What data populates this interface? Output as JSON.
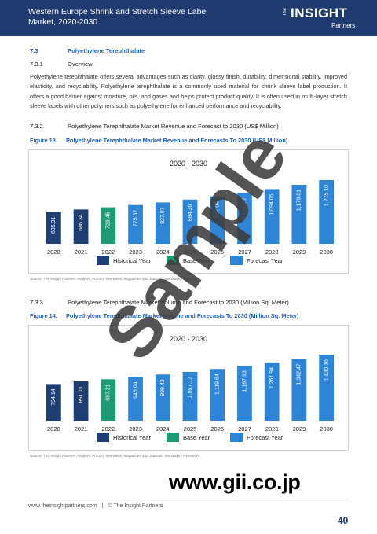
{
  "header": {
    "title": "Western Europe Shrink and Stretch Sleeve Label Market, 2020-2030",
    "logo": {
      "the": "The",
      "insight": "INSIGHT",
      "partners": "Partners"
    }
  },
  "sections": {
    "s1": {
      "num": "7.3",
      "title": "Polyethylene Terephthalate"
    },
    "s2": {
      "num": "7.3.1",
      "title": "Overview"
    },
    "s3": {
      "num": "7.3.2",
      "title": "Polyethylene Terephthalate Market Revenue and Forecast to 2030 (US$ Million)"
    },
    "s4": {
      "num": "7.3.3",
      "title": "Polyethylene Terephthalate Market Volume and Forecast to 2030 (Million Sq. Meter)"
    }
  },
  "overview_text": "Polyethylene terephthalate offers several advantages such as clarity, glossy finish, durability, dimensional stability, improved elasticity, and recyclability. Polyethylene terephthalate is a commonly used material for shrink sleeve label production. It offers a good barrier against moisture, oils, and gases and helps protect product quality. It is often used in multi-layer stretch sleeve labels with other polymers such as polyethylene for enhanced performance and recyclability.",
  "figures": {
    "f13": {
      "num": "Figure 13.",
      "title": "Polyethylene Terephthalate Market Revenue and Forecasts To 2030 (US$ Million)",
      "source": "Source: The Insight Partners Analysis, Primary Interviews, Magazines and Journals, Secondary Research"
    },
    "f14": {
      "num": "Figure 14.",
      "title": "Polyethylene Terephthalate Market Volume and Forecasts To 2030 (Million Sq. Meter)",
      "source": "Source: The Insight Partners Analysis, Primary Interviews, Magazines and Journals, Secondary Research"
    }
  },
  "chart_data": [
    {
      "type": "bar",
      "title": "2020 - 2030",
      "categories": [
        "2020",
        "2021",
        "2022",
        "2023",
        "2024",
        "2025",
        "2026",
        "2027",
        "2028",
        "2029",
        "2030"
      ],
      "values": [
        635.31,
        686.34,
        729.45,
        775.37,
        827.07,
        884.36,
        947.04,
        1016.77,
        1094.05,
        1179.81,
        1275.1
      ],
      "labels": [
        "635.31",
        "686.34",
        "729.45",
        "775.37",
        "827.07",
        "884.36",
        "947.04",
        "1,016.77",
        "1,094.05",
        "1,179.81",
        "1,275.10"
      ],
      "bar_kinds": [
        "historical",
        "historical",
        "base",
        "forecast",
        "forecast",
        "forecast",
        "forecast",
        "forecast",
        "forecast",
        "forecast",
        "forecast"
      ],
      "legend": [
        "Historical Year",
        "Base Year",
        "Forecast Year"
      ],
      "colors": {
        "historical": "#1f3f73",
        "base": "#1e9a76",
        "forecast": "#2e84d6"
      },
      "ylim": [
        0,
        1400
      ]
    },
    {
      "type": "bar",
      "title": "2020 - 2030",
      "categories": [
        "2020",
        "2021",
        "2022",
        "2023",
        "2024",
        "2025",
        "2026",
        "2027",
        "2028",
        "2029",
        "2030"
      ],
      "values": [
        794.14,
        851.71,
        897.21,
        946.04,
        999.43,
        1057.17,
        1119.84,
        1187.93,
        1261.94,
        1342.47,
        1430.16
      ],
      "labels": [
        "794.14",
        "851.71",
        "897.21",
        "946.04",
        "999.43",
        "1,057.17",
        "1,119.84",
        "1,187.93",
        "1,261.94",
        "1,342.47",
        "1,430.16"
      ],
      "bar_kinds": [
        "historical",
        "historical",
        "base",
        "forecast",
        "forecast",
        "forecast",
        "forecast",
        "forecast",
        "forecast",
        "forecast",
        "forecast"
      ],
      "legend": [
        "Historical Year",
        "Base Year",
        "Forecast Year"
      ],
      "colors": {
        "historical": "#1f3f73",
        "base": "#1e9a76",
        "forecast": "#2e84d6"
      },
      "ylim": [
        0,
        1550
      ]
    }
  ],
  "footer": {
    "website": "www.theinsightpartners.com",
    "separator": "|",
    "copyright": "© The Insight Partners",
    "page": "40"
  },
  "watermark": {
    "sample": "Sample",
    "url": "www.gii.co.jp"
  }
}
